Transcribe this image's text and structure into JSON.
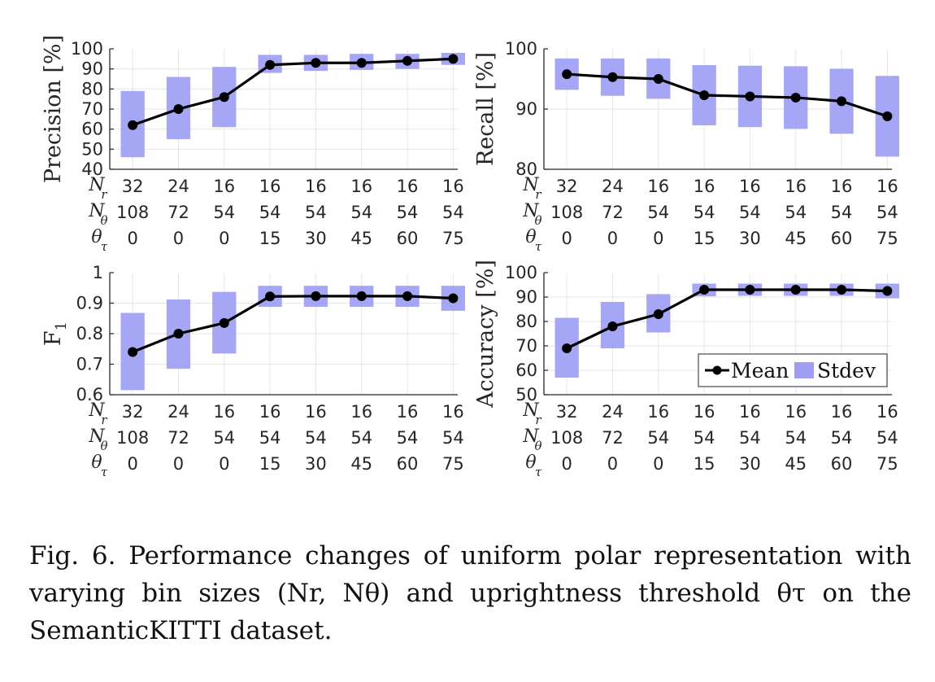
{
  "chart_data": [
    {
      "type": "line",
      "ylabel": "Precision [%]",
      "ylim": [
        40,
        100
      ],
      "yticks": [
        "40",
        "50",
        "60",
        "70",
        "80",
        "90",
        "100"
      ],
      "categories": {
        "N_r": [
          "32",
          "24",
          "16",
          "16",
          "16",
          "16",
          "16",
          "16"
        ],
        "N_theta": [
          "108",
          "72",
          "54",
          "54",
          "54",
          "54",
          "54",
          "54"
        ],
        "theta_tau": [
          "0",
          "0",
          "0",
          "15",
          "30",
          "45",
          "60",
          "75"
        ]
      },
      "series": [
        {
          "name": "Mean",
          "values": [
            62,
            70,
            76,
            92,
            93,
            93,
            94,
            95
          ]
        },
        {
          "name": "Stdev",
          "lower": [
            46,
            55,
            61,
            88,
            89,
            89.5,
            90,
            92
          ],
          "upper": [
            79,
            86,
            91,
            97,
            97,
            97.5,
            97.5,
            98
          ]
        }
      ],
      "grid": true
    },
    {
      "type": "line",
      "ylabel": "Recall [%]",
      "ylim": [
        80,
        100
      ],
      "yticks": [
        "80",
        "90",
        "100"
      ],
      "categories": {
        "N_r": [
          "32",
          "24",
          "16",
          "16",
          "16",
          "16",
          "16",
          "16"
        ],
        "N_theta": [
          "108",
          "72",
          "54",
          "54",
          "54",
          "54",
          "54",
          "54"
        ],
        "theta_tau": [
          "0",
          "0",
          "0",
          "15",
          "30",
          "45",
          "60",
          "75"
        ]
      },
      "series": [
        {
          "name": "Mean",
          "values": [
            95.8,
            95.3,
            95,
            92.3,
            92.1,
            91.9,
            91.3,
            88.8
          ]
        },
        {
          "name": "Stdev",
          "lower": [
            93.2,
            92.2,
            91.7,
            87.3,
            87.0,
            86.7,
            85.9,
            82.1
          ],
          "upper": [
            98.4,
            98.4,
            98.4,
            97.3,
            97.2,
            97.1,
            96.7,
            95.5
          ]
        }
      ],
      "grid": true
    },
    {
      "type": "line",
      "ylabel": "F1",
      "ylim": [
        0.6,
        1
      ],
      "yticks": [
        "0.6",
        "0.7",
        "0.8",
        "0.9",
        "1"
      ],
      "categories": {
        "N_r": [
          "32",
          "24",
          "16",
          "16",
          "16",
          "16",
          "16",
          "16"
        ],
        "N_theta": [
          "108",
          "72",
          "54",
          "54",
          "54",
          "54",
          "54",
          "54"
        ],
        "theta_tau": [
          "0",
          "0",
          "0",
          "15",
          "30",
          "45",
          "60",
          "75"
        ]
      },
      "series": [
        {
          "name": "Mean",
          "values": [
            0.74,
            0.8,
            0.835,
            0.922,
            0.923,
            0.923,
            0.923,
            0.916
          ]
        },
        {
          "name": "Stdev",
          "lower": [
            0.615,
            0.685,
            0.735,
            0.888,
            0.888,
            0.888,
            0.888,
            0.875
          ],
          "upper": [
            0.868,
            0.912,
            0.937,
            0.957,
            0.957,
            0.957,
            0.957,
            0.957
          ]
        }
      ],
      "grid": true
    },
    {
      "type": "line",
      "ylabel": "Accuracy [%]",
      "ylim": [
        50,
        100
      ],
      "yticks": [
        "50",
        "60",
        "70",
        "80",
        "90",
        "100"
      ],
      "categories": {
        "N_r": [
          "32",
          "24",
          "16",
          "16",
          "16",
          "16",
          "16",
          "16"
        ],
        "N_theta": [
          "108",
          "72",
          "54",
          "54",
          "54",
          "54",
          "54",
          "54"
        ],
        "theta_tau": [
          "0",
          "0",
          "0",
          "15",
          "30",
          "45",
          "60",
          "75"
        ]
      },
      "series": [
        {
          "name": "Mean",
          "values": [
            69,
            78,
            83,
            93,
            93,
            93,
            93,
            92.5
          ]
        },
        {
          "name": "Stdev",
          "lower": [
            57,
            69,
            75.5,
            90.3,
            90.5,
            90.5,
            90.5,
            89.5
          ],
          "upper": [
            81.5,
            88,
            91.2,
            95.5,
            95.5,
            95.5,
            95.5,
            95.5
          ]
        }
      ],
      "grid": true,
      "legend": {
        "position": "bottom-right",
        "entries": [
          "Mean",
          "Stdev"
        ]
      }
    }
  ],
  "caption": "Fig. 6. Performance changes of uniform polar representation with varying bin sizes (Nr, Nθ) and uprightness threshold θτ on the SemanticKITTI dataset.",
  "colors": {
    "band": "#9e9ef5",
    "line": "#000000",
    "grid": "#e6e6e6",
    "axis": "#262626"
  }
}
